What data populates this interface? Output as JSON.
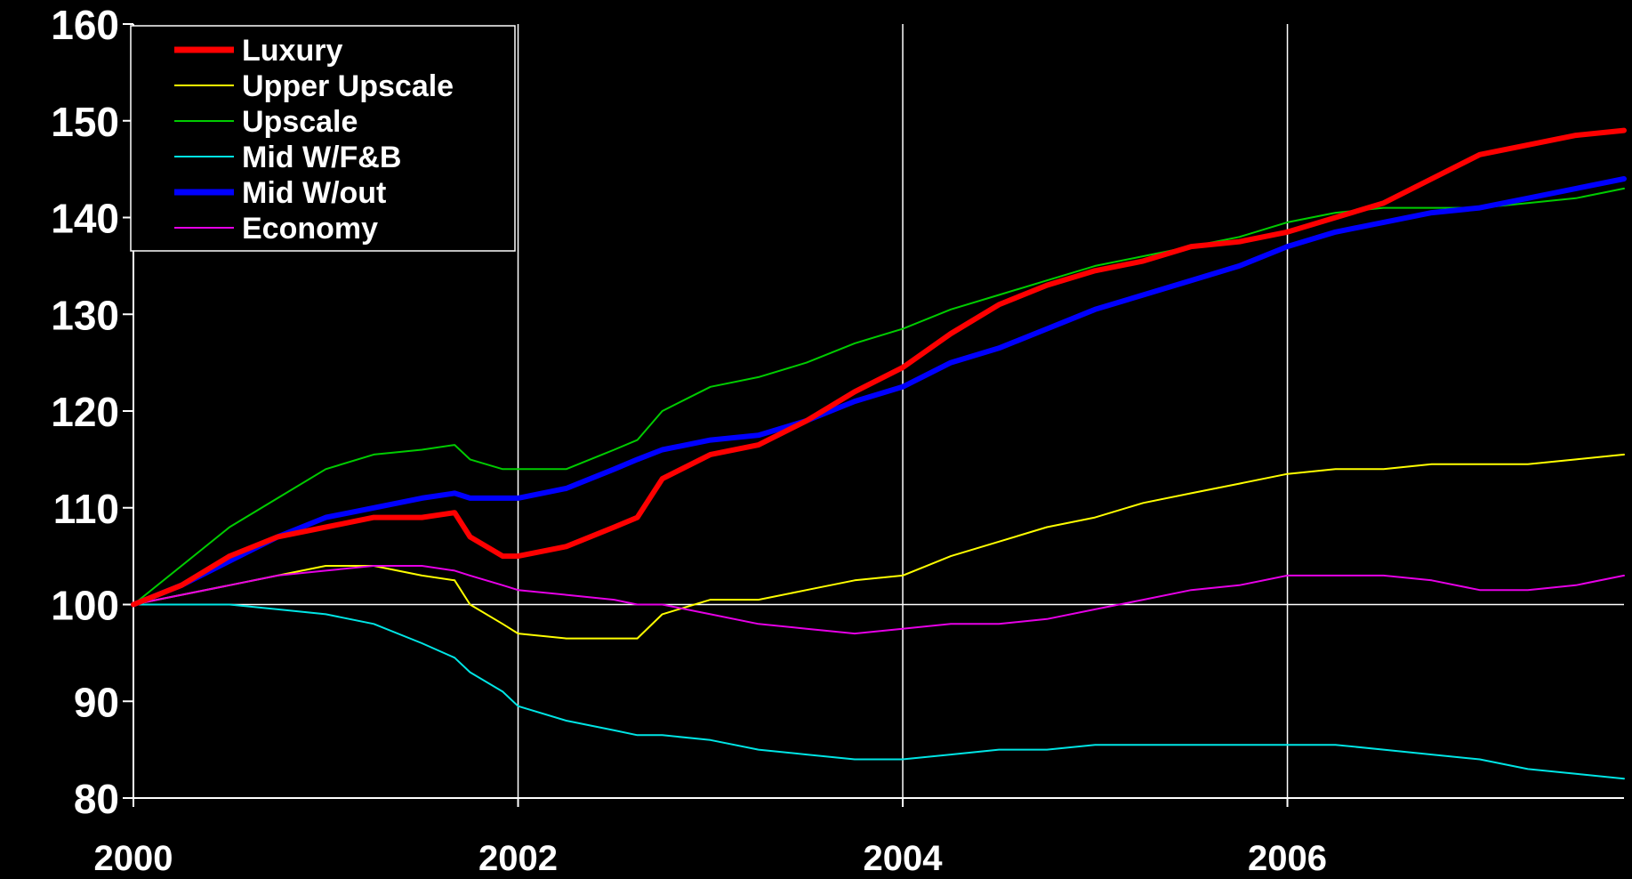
{
  "chart_data": {
    "type": "line",
    "title": "",
    "xlabel": "",
    "ylabel": "",
    "xlim": [
      2000,
      2007.75
    ],
    "ylim": [
      80,
      160
    ],
    "yticks": [
      "80",
      "90",
      "100",
      "110",
      "120",
      "130",
      "140",
      "150",
      "160"
    ],
    "xticks": [
      "2000",
      "2002",
      "2004",
      "2006"
    ],
    "grid": {
      "vertical": [
        2002,
        2004,
        2006
      ],
      "horizontal": [
        100
      ]
    },
    "legend_position": "top-left",
    "series": [
      {
        "name": "Luxury",
        "color": "#ff0000",
        "width": "thick",
        "x": [
          2000.0,
          2000.25,
          2000.5,
          2000.75,
          2001.0,
          2001.25,
          2001.5,
          2001.67,
          2001.75,
          2001.92,
          2002.0,
          2002.25,
          2002.5,
          2002.62,
          2002.75,
          2003.0,
          2003.25,
          2003.5,
          2003.75,
          2004.0,
          2004.25,
          2004.5,
          2004.75,
          2005.0,
          2005.25,
          2005.5,
          2005.75,
          2006.0,
          2006.25,
          2006.5,
          2006.75,
          2007.0,
          2007.25,
          2007.5,
          2007.75
        ],
        "values": [
          100,
          102,
          105,
          107,
          108,
          109,
          109,
          109.5,
          107,
          105,
          105,
          106,
          108,
          109,
          113,
          115.5,
          116.5,
          119,
          122,
          124.5,
          128,
          131,
          133,
          134.5,
          135.5,
          137,
          137.5,
          138.5,
          140,
          141.5,
          144,
          146.5,
          147.5,
          148.5,
          149
        ]
      },
      {
        "name": "Upper Upscale",
        "color": "#ffff00",
        "width": "thin",
        "x": [
          2000.0,
          2000.25,
          2000.5,
          2000.75,
          2001.0,
          2001.25,
          2001.5,
          2001.67,
          2001.75,
          2001.92,
          2002.0,
          2002.25,
          2002.5,
          2002.62,
          2002.75,
          2003.0,
          2003.25,
          2003.5,
          2003.75,
          2004.0,
          2004.25,
          2004.5,
          2004.75,
          2005.0,
          2005.25,
          2005.5,
          2005.75,
          2006.0,
          2006.25,
          2006.5,
          2006.75,
          2007.0,
          2007.25,
          2007.5,
          2007.75
        ],
        "values": [
          100,
          101,
          102,
          103,
          104,
          104,
          103,
          102.5,
          100,
          98,
          97,
          96.5,
          96.5,
          96.5,
          99,
          100.5,
          100.5,
          101.5,
          102.5,
          103,
          105,
          106.5,
          108,
          109,
          110.5,
          111.5,
          112.5,
          113.5,
          114,
          114,
          114.5,
          114.5,
          114.5,
          115,
          115.5
        ]
      },
      {
        "name": "Upscale",
        "color": "#00cc00",
        "width": "thin",
        "x": [
          2000.0,
          2000.25,
          2000.5,
          2000.75,
          2001.0,
          2001.25,
          2001.5,
          2001.67,
          2001.75,
          2001.92,
          2002.0,
          2002.25,
          2002.5,
          2002.62,
          2002.75,
          2003.0,
          2003.25,
          2003.5,
          2003.75,
          2004.0,
          2004.25,
          2004.5,
          2004.75,
          2005.0,
          2005.25,
          2005.5,
          2005.75,
          2006.0,
          2006.25,
          2006.5,
          2006.75,
          2007.0,
          2007.25,
          2007.5,
          2007.75
        ],
        "values": [
          100,
          104,
          108,
          111,
          114,
          115.5,
          116,
          116.5,
          115,
          114,
          114,
          114,
          116,
          117,
          120,
          122.5,
          123.5,
          125,
          127,
          128.5,
          130.5,
          132,
          133.5,
          135,
          136,
          137,
          138,
          139.5,
          140.5,
          141,
          141,
          141,
          141.5,
          142,
          143
        ]
      },
      {
        "name": "Mid W/F&B",
        "color": "#00e5e5",
        "width": "thin",
        "x": [
          2000.0,
          2000.25,
          2000.5,
          2000.75,
          2001.0,
          2001.25,
          2001.5,
          2001.67,
          2001.75,
          2001.92,
          2002.0,
          2002.25,
          2002.5,
          2002.62,
          2002.75,
          2003.0,
          2003.25,
          2003.5,
          2003.75,
          2004.0,
          2004.25,
          2004.5,
          2004.75,
          2005.0,
          2005.25,
          2005.5,
          2005.75,
          2006.0,
          2006.25,
          2006.5,
          2006.75,
          2007.0,
          2007.25,
          2007.5,
          2007.75
        ],
        "values": [
          100,
          100,
          100,
          99.5,
          99,
          98,
          96,
          94.5,
          93,
          91,
          89.5,
          88,
          87,
          86.5,
          86.5,
          86,
          85,
          84.5,
          84,
          84,
          84.5,
          85,
          85,
          85.5,
          85.5,
          85.5,
          85.5,
          85.5,
          85.5,
          85,
          84.5,
          84,
          83,
          82.5,
          82
        ]
      },
      {
        "name": "Mid W/out",
        "color": "#0000ff",
        "width": "thick",
        "x": [
          2000.0,
          2000.25,
          2000.5,
          2000.75,
          2001.0,
          2001.25,
          2001.5,
          2001.67,
          2001.75,
          2001.92,
          2002.0,
          2002.25,
          2002.5,
          2002.62,
          2002.75,
          2003.0,
          2003.25,
          2003.5,
          2003.75,
          2004.0,
          2004.25,
          2004.5,
          2004.75,
          2005.0,
          2005.25,
          2005.5,
          2005.75,
          2006.0,
          2006.25,
          2006.5,
          2006.75,
          2007.0,
          2007.25,
          2007.5,
          2007.75
        ],
        "values": [
          100,
          102,
          104.5,
          107,
          109,
          110,
          111,
          111.5,
          111,
          111,
          111,
          112,
          114,
          115,
          116,
          117,
          117.5,
          119,
          121,
          122.5,
          125,
          126.5,
          128.5,
          130.5,
          132,
          133.5,
          135,
          137,
          138.5,
          139.5,
          140.5,
          141,
          142,
          143,
          144
        ]
      },
      {
        "name": "Economy",
        "color": "#e600e6",
        "width": "thin",
        "x": [
          2000.0,
          2000.25,
          2000.5,
          2000.75,
          2001.0,
          2001.25,
          2001.5,
          2001.67,
          2001.75,
          2001.92,
          2002.0,
          2002.25,
          2002.5,
          2002.62,
          2002.75,
          2003.0,
          2003.25,
          2003.5,
          2003.75,
          2004.0,
          2004.25,
          2004.5,
          2004.75,
          2005.0,
          2005.25,
          2005.5,
          2005.75,
          2006.0,
          2006.25,
          2006.5,
          2006.75,
          2007.0,
          2007.25,
          2007.5,
          2007.75
        ],
        "values": [
          100,
          101,
          102,
          103,
          103.5,
          104,
          104,
          103.5,
          103,
          102,
          101.5,
          101,
          100.5,
          100,
          100,
          99,
          98,
          97.5,
          97,
          97.5,
          98,
          98,
          98.5,
          99.5,
          100.5,
          101.5,
          102,
          103,
          103,
          103,
          102.5,
          101.5,
          101.5,
          102,
          103
        ]
      }
    ]
  }
}
